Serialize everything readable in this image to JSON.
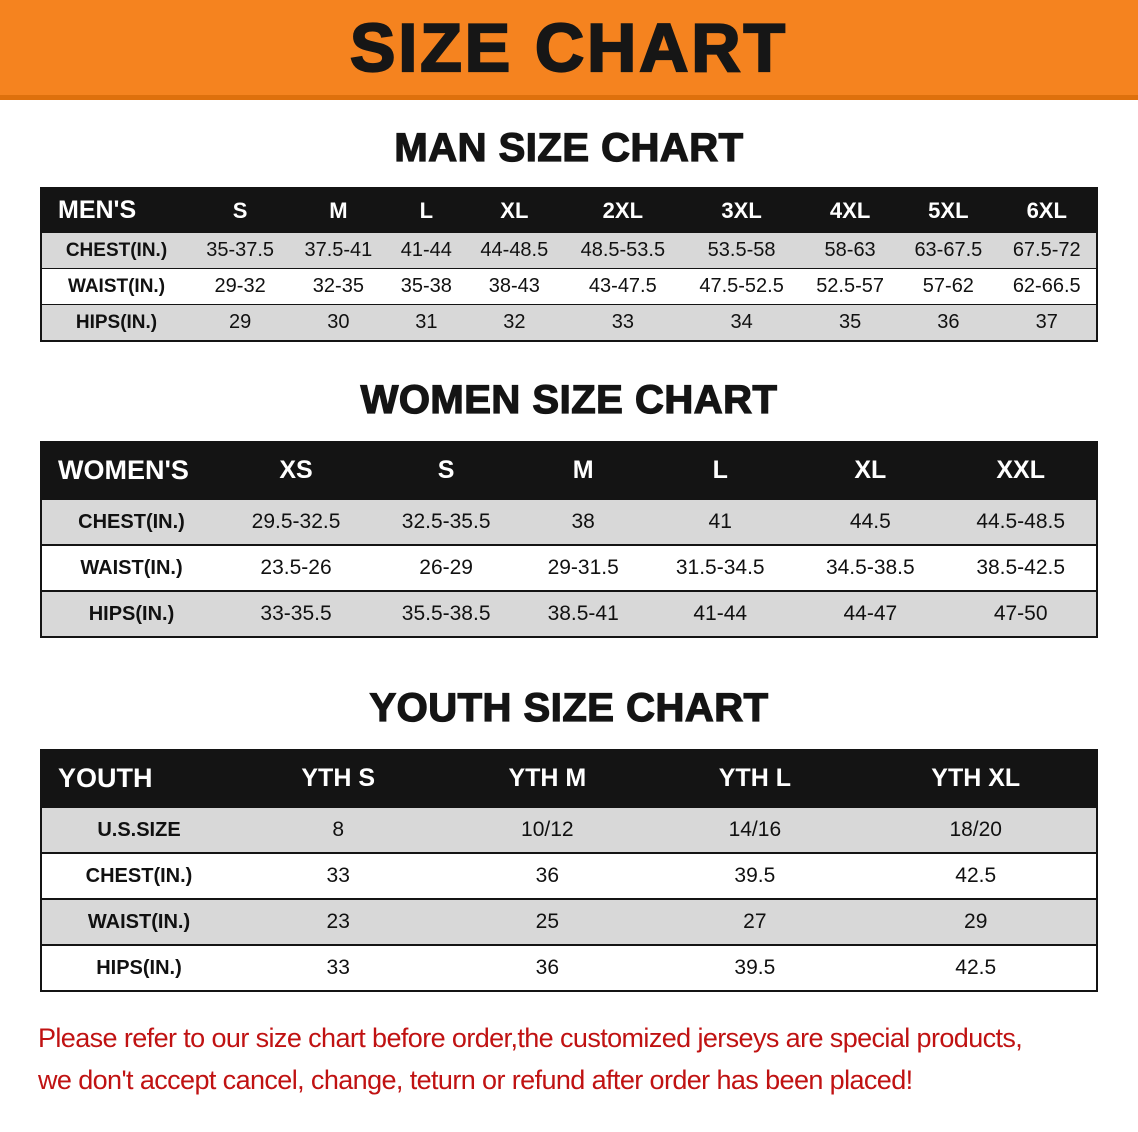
{
  "banner": {
    "title": "SIZE CHART"
  },
  "sections": [
    {
      "id": "men",
      "heading": "MAN SIZE CHART",
      "table": {
        "header": [
          "MEN'S",
          "S",
          "M",
          "L",
          "XL",
          "2XL",
          "3XL",
          "4XL",
          "5XL",
          "6XL"
        ],
        "rows": [
          [
            "CHEST(IN.)",
            "35-37.5",
            "37.5-41",
            "41-44",
            "44-48.5",
            "48.5-53.5",
            "53.5-58",
            "58-63",
            "63-67.5",
            "67.5-72"
          ],
          [
            "WAIST(IN.)",
            "29-32",
            "32-35",
            "35-38",
            "38-43",
            "43-47.5",
            "47.5-52.5",
            "52.5-57",
            "57-62",
            "62-66.5"
          ],
          [
            "HIPS(IN.)",
            "29",
            "30",
            "31",
            "32",
            "33",
            "34",
            "35",
            "36",
            "37"
          ]
        ]
      }
    },
    {
      "id": "women",
      "heading": "WOMEN SIZE CHART",
      "table": {
        "header": [
          "WOMEN'S",
          "XS",
          "S",
          "M",
          "L",
          "XL",
          "XXL"
        ],
        "rows": [
          [
            "CHEST(IN.)",
            "29.5-32.5",
            "32.5-35.5",
            "38",
            "41",
            "44.5",
            "44.5-48.5"
          ],
          [
            "WAIST(IN.)",
            "23.5-26",
            "26-29",
            "29-31.5",
            "31.5-34.5",
            "34.5-38.5",
            "38.5-42.5"
          ],
          [
            "HIPS(IN.)",
            "33-35.5",
            "35.5-38.5",
            "38.5-41",
            "41-44",
            "44-47",
            "47-50"
          ]
        ]
      }
    },
    {
      "id": "youth",
      "heading": "YOUTH SIZE CHART",
      "table": {
        "header": [
          "YOUTH",
          "YTH S",
          "YTH M",
          "YTH L",
          "YTH XL"
        ],
        "rows": [
          [
            "U.S.SIZE",
            "8",
            "10/12",
            "14/16",
            "18/20"
          ],
          [
            "CHEST(IN.)",
            "33",
            "36",
            "39.5",
            "42.5"
          ],
          [
            "WAIST(IN.)",
            "23",
            "25",
            "27",
            "29"
          ],
          [
            "HIPS(IN.)",
            "33",
            "36",
            "39.5",
            "42.5"
          ]
        ]
      }
    }
  ],
  "footer": {
    "line1": "Please refer to our size chart before order,the customized jerseys are special products,",
    "line2": "we don't accept cancel, change, teturn or refund after order has been placed!"
  },
  "colors": {
    "banner_orange": "#F5831F",
    "banner_edge": "#DE700C",
    "header_black": "#141414",
    "stripe_gray": "#D8D8D8",
    "notice_red": "#C01212"
  }
}
